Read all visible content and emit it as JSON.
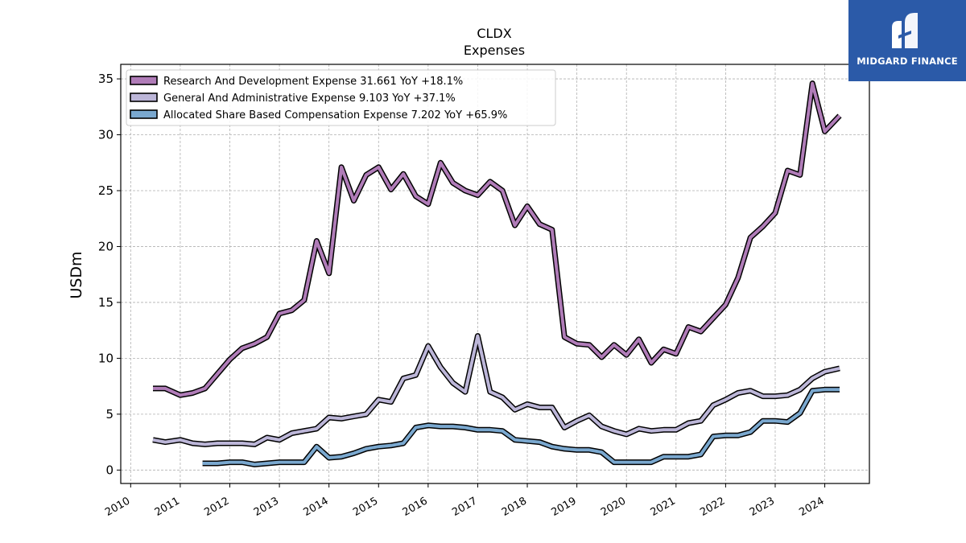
{
  "chart_data": {
    "type": "line",
    "title": "CLDX",
    "subtitle": "Expenses",
    "ylabel": "USDm",
    "xlabel": "",
    "ylim": [
      -1.2,
      36.3
    ],
    "xlim": [
      2009.8,
      2024.9
    ],
    "y_ticks": [
      0,
      5,
      10,
      15,
      20,
      25,
      30,
      35
    ],
    "x_ticks": [
      "2010",
      "2011",
      "2012",
      "2013",
      "2014",
      "2015",
      "2016",
      "2017",
      "2018",
      "2019",
      "2020",
      "2021",
      "2022",
      "2023",
      "2024"
    ],
    "grid": true,
    "legend_position": "upper-left",
    "series": [
      {
        "name": "Research And Development Expense",
        "legend_label": "Research And Development Expense  31.661 YoY +18.1%",
        "color": "#b07cb8",
        "x": [
          2010.45,
          2010.7,
          2011.0,
          2011.25,
          2011.5,
          2011.75,
          2012.0,
          2012.25,
          2012.5,
          2012.75,
          2013.0,
          2013.25,
          2013.5,
          2013.75,
          2014.0,
          2014.25,
          2014.5,
          2014.75,
          2015.0,
          2015.25,
          2015.5,
          2015.75,
          2016.0,
          2016.25,
          2016.5,
          2016.75,
          2017.0,
          2017.25,
          2017.5,
          2017.75,
          2018.0,
          2018.25,
          2018.5,
          2018.75,
          2019.0,
          2019.25,
          2019.5,
          2019.75,
          2020.0,
          2020.25,
          2020.5,
          2020.75,
          2021.0,
          2021.25,
          2021.5,
          2021.75,
          2022.0,
          2022.25,
          2022.5,
          2022.75,
          2023.0,
          2023.25,
          2023.5,
          2023.75,
          2024.0,
          2024.3
        ],
        "y": [
          7.3,
          7.3,
          6.7,
          6.9,
          7.3,
          8.6,
          9.9,
          10.9,
          11.3,
          11.9,
          14.0,
          14.3,
          15.2,
          20.5,
          17.6,
          27.1,
          24.1,
          26.4,
          27.1,
          25.1,
          26.5,
          24.5,
          23.8,
          27.5,
          25.7,
          25.0,
          24.6,
          25.8,
          25.0,
          21.9,
          23.6,
          22.0,
          21.5,
          11.9,
          11.3,
          11.2,
          10.1,
          11.2,
          10.3,
          11.7,
          9.6,
          10.8,
          10.4,
          12.8,
          12.4,
          13.6,
          14.8,
          17.2,
          20.8,
          21.8,
          23.0,
          26.8,
          26.4,
          34.6,
          30.3,
          31.7
        ]
      },
      {
        "name": "General And Administrative Expense",
        "legend_label": "General And Administrative Expense  9.103 YoY +37.1%",
        "color": "#bcb6d8",
        "x": [
          2010.45,
          2010.7,
          2011.0,
          2011.25,
          2011.5,
          2011.75,
          2012.0,
          2012.25,
          2012.5,
          2012.75,
          2013.0,
          2013.25,
          2013.5,
          2013.75,
          2014.0,
          2014.25,
          2014.5,
          2014.75,
          2015.0,
          2015.25,
          2015.5,
          2015.75,
          2016.0,
          2016.25,
          2016.5,
          2016.75,
          2017.0,
          2017.25,
          2017.5,
          2017.75,
          2018.0,
          2018.25,
          2018.5,
          2018.75,
          2019.0,
          2019.25,
          2019.5,
          2019.75,
          2020.0,
          2020.25,
          2020.5,
          2020.75,
          2021.0,
          2021.25,
          2021.5,
          2021.75,
          2022.0,
          2022.25,
          2022.5,
          2022.75,
          2023.0,
          2023.25,
          2023.5,
          2023.75,
          2024.0,
          2024.3
        ],
        "y": [
          2.7,
          2.5,
          2.7,
          2.4,
          2.3,
          2.4,
          2.4,
          2.4,
          2.3,
          2.9,
          2.7,
          3.3,
          3.5,
          3.7,
          4.7,
          4.6,
          4.8,
          5.0,
          6.3,
          6.1,
          8.2,
          8.5,
          11.1,
          9.2,
          7.8,
          7.0,
          12.0,
          7.0,
          6.5,
          5.4,
          5.9,
          5.6,
          5.6,
          3.8,
          4.4,
          4.9,
          3.9,
          3.5,
          3.2,
          3.7,
          3.5,
          3.6,
          3.6,
          4.2,
          4.4,
          5.8,
          6.3,
          6.9,
          7.1,
          6.6,
          6.6,
          6.7,
          7.2,
          8.2,
          8.8,
          9.1
        ]
      },
      {
        "name": "Allocated Share Based Compensation Expense",
        "legend_label": "Allocated Share Based Compensation Expense  7.202 YoY +65.9%",
        "color": "#7aa8cf",
        "x": [
          2011.45,
          2011.75,
          2012.0,
          2012.25,
          2012.5,
          2012.75,
          2013.0,
          2013.25,
          2013.5,
          2013.75,
          2014.0,
          2014.25,
          2014.5,
          2014.75,
          2015.0,
          2015.25,
          2015.5,
          2015.75,
          2016.0,
          2016.25,
          2016.5,
          2016.75,
          2017.0,
          2017.25,
          2017.5,
          2017.75,
          2018.0,
          2018.25,
          2018.5,
          2018.75,
          2019.0,
          2019.25,
          2019.5,
          2019.75,
          2020.0,
          2020.25,
          2020.5,
          2020.75,
          2021.0,
          2021.25,
          2021.5,
          2021.75,
          2022.0,
          2022.25,
          2022.5,
          2022.75,
          2023.0,
          2023.25,
          2023.5,
          2023.75,
          2024.0,
          2024.3
        ],
        "y": [
          0.6,
          0.6,
          0.7,
          0.7,
          0.5,
          0.6,
          0.7,
          0.7,
          0.7,
          2.1,
          1.1,
          1.2,
          1.5,
          1.9,
          2.1,
          2.2,
          2.4,
          3.8,
          4.0,
          3.9,
          3.9,
          3.8,
          3.6,
          3.6,
          3.5,
          2.7,
          2.6,
          2.5,
          2.1,
          1.9,
          1.8,
          1.8,
          1.6,
          0.7,
          0.7,
          0.7,
          0.7,
          1.2,
          1.2,
          1.2,
          1.4,
          3.0,
          3.1,
          3.1,
          3.4,
          4.4,
          4.4,
          4.3,
          5.1,
          7.1,
          7.2,
          7.2
        ]
      }
    ]
  },
  "brand": {
    "name": "MIDGARD FINANCE",
    "color": "#2b5aa8"
  }
}
